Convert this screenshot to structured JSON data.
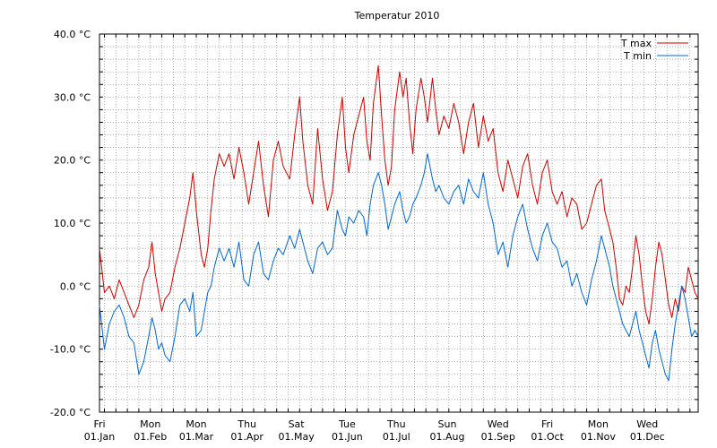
{
  "chart_data": {
    "type": "line",
    "title": "Temperatur 2010",
    "xlabel": "",
    "ylabel": "",
    "ylim": [
      -20,
      40
    ],
    "xlim": [
      0,
      365
    ],
    "grid": true,
    "legend_position": "top-right",
    "yticks": [
      {
        "value": -20,
        "label": "-20.0 °C"
      },
      {
        "value": -10,
        "label": "-10.0 °C"
      },
      {
        "value": 0,
        "label": "0.0 °C"
      },
      {
        "value": 10,
        "label": "10.0 °C"
      },
      {
        "value": 20,
        "label": "20.0 °C"
      },
      {
        "value": 30,
        "label": "30.0 °C"
      },
      {
        "value": 40,
        "label": "40.0 °C"
      }
    ],
    "xticks": [
      {
        "day": 0,
        "weekday": "Fri",
        "date": "01.Jan"
      },
      {
        "day": 31,
        "weekday": "Mon",
        "date": "01.Feb"
      },
      {
        "day": 59,
        "weekday": "Mon",
        "date": "01.Mar"
      },
      {
        "day": 90,
        "weekday": "Thu",
        "date": "01.Apr"
      },
      {
        "day": 120,
        "weekday": "Sat",
        "date": "01.May"
      },
      {
        "day": 151,
        "weekday": "Tue",
        "date": "01.Jun"
      },
      {
        "day": 181,
        "weekday": "Thu",
        "date": "01.Jul"
      },
      {
        "day": 212,
        "weekday": "Sun",
        "date": "01.Aug"
      },
      {
        "day": 243,
        "weekday": "Wed",
        "date": "01.Sep"
      },
      {
        "day": 273,
        "weekday": "Fri",
        "date": "01.Oct"
      },
      {
        "day": 304,
        "weekday": "Mon",
        "date": "01.Nov"
      },
      {
        "day": 334,
        "weekday": "Wed",
        "date": "01.Dec"
      }
    ],
    "series": [
      {
        "name": "T max",
        "color": "#cc0000",
        "points": [
          [
            0,
            6
          ],
          [
            3,
            -1
          ],
          [
            6,
            0
          ],
          [
            9,
            -2
          ],
          [
            12,
            1
          ],
          [
            15,
            -1
          ],
          [
            18,
            -3
          ],
          [
            21,
            -5
          ],
          [
            24,
            -3
          ],
          [
            27,
            1
          ],
          [
            30,
            3
          ],
          [
            32,
            7
          ],
          [
            34,
            2
          ],
          [
            36,
            -1
          ],
          [
            38,
            -4
          ],
          [
            40,
            -2
          ],
          [
            43,
            -1
          ],
          [
            46,
            3
          ],
          [
            49,
            6
          ],
          [
            52,
            10
          ],
          [
            55,
            14
          ],
          [
            57,
            18
          ],
          [
            59,
            12
          ],
          [
            62,
            5
          ],
          [
            64,
            3
          ],
          [
            66,
            6
          ],
          [
            68,
            12
          ],
          [
            70,
            17
          ],
          [
            73,
            21
          ],
          [
            76,
            19
          ],
          [
            79,
            21
          ],
          [
            82,
            17
          ],
          [
            85,
            22
          ],
          [
            88,
            18
          ],
          [
            91,
            13
          ],
          [
            94,
            18
          ],
          [
            97,
            23
          ],
          [
            100,
            16
          ],
          [
            103,
            11
          ],
          [
            106,
            20
          ],
          [
            109,
            23
          ],
          [
            112,
            19
          ],
          [
            116,
            17
          ],
          [
            119,
            24
          ],
          [
            122,
            30
          ],
          [
            124,
            23
          ],
          [
            127,
            16
          ],
          [
            130,
            13
          ],
          [
            133,
            25
          ],
          [
            136,
            17
          ],
          [
            139,
            12
          ],
          [
            142,
            15
          ],
          [
            145,
            24
          ],
          [
            148,
            30
          ],
          [
            150,
            22
          ],
          [
            152,
            18
          ],
          [
            155,
            24
          ],
          [
            158,
            27
          ],
          [
            161,
            30
          ],
          [
            163,
            23
          ],
          [
            165,
            20
          ],
          [
            167,
            29
          ],
          [
            170,
            35
          ],
          [
            172,
            27
          ],
          [
            174,
            20
          ],
          [
            176,
            16
          ],
          [
            178,
            19
          ],
          [
            180,
            28
          ],
          [
            183,
            34
          ],
          [
            185,
            30
          ],
          [
            187,
            33
          ],
          [
            189,
            26
          ],
          [
            191,
            21
          ],
          [
            193,
            28
          ],
          [
            196,
            33
          ],
          [
            198,
            30
          ],
          [
            200,
            26
          ],
          [
            203,
            33
          ],
          [
            205,
            28
          ],
          [
            207,
            24
          ],
          [
            210,
            27
          ],
          [
            213,
            25
          ],
          [
            216,
            29
          ],
          [
            219,
            26
          ],
          [
            222,
            21
          ],
          [
            225,
            26
          ],
          [
            228,
            29
          ],
          [
            231,
            22
          ],
          [
            234,
            27
          ],
          [
            237,
            23
          ],
          [
            240,
            25
          ],
          [
            243,
            18
          ],
          [
            246,
            15
          ],
          [
            249,
            20
          ],
          [
            252,
            17
          ],
          [
            255,
            14
          ],
          [
            258,
            19
          ],
          [
            261,
            21
          ],
          [
            264,
            16
          ],
          [
            267,
            13
          ],
          [
            270,
            18
          ],
          [
            273,
            20
          ],
          [
            276,
            15
          ],
          [
            279,
            13
          ],
          [
            282,
            15
          ],
          [
            285,
            11
          ],
          [
            288,
            14
          ],
          [
            291,
            13
          ],
          [
            294,
            9
          ],
          [
            297,
            10
          ],
          [
            300,
            13
          ],
          [
            303,
            16
          ],
          [
            306,
            17
          ],
          [
            308,
            12
          ],
          [
            311,
            9
          ],
          [
            313,
            7
          ],
          [
            315,
            3
          ],
          [
            317,
            -2
          ],
          [
            319,
            -3
          ],
          [
            321,
            0
          ],
          [
            323,
            -1
          ],
          [
            325,
            3
          ],
          [
            327,
            8
          ],
          [
            329,
            5
          ],
          [
            331,
            0
          ],
          [
            333,
            -4
          ],
          [
            335,
            -6
          ],
          [
            337,
            -2
          ],
          [
            339,
            3
          ],
          [
            341,
            7
          ],
          [
            343,
            5
          ],
          [
            345,
            1
          ],
          [
            347,
            -3
          ],
          [
            349,
            -5
          ],
          [
            351,
            -2
          ],
          [
            353,
            -4
          ],
          [
            355,
            0
          ],
          [
            357,
            -1
          ],
          [
            359,
            3
          ],
          [
            361,
            1
          ],
          [
            363,
            -1
          ],
          [
            365,
            -2
          ]
        ]
      },
      {
        "name": "T min",
        "color": "#0066cc",
        "points": [
          [
            0,
            -3
          ],
          [
            3,
            -10
          ],
          [
            6,
            -6
          ],
          [
            9,
            -4
          ],
          [
            12,
            -3
          ],
          [
            15,
            -5
          ],
          [
            18,
            -8
          ],
          [
            21,
            -9
          ],
          [
            24,
            -14
          ],
          [
            27,
            -12
          ],
          [
            30,
            -8
          ],
          [
            32,
            -5
          ],
          [
            34,
            -7
          ],
          [
            36,
            -10
          ],
          [
            38,
            -9
          ],
          [
            40,
            -11
          ],
          [
            43,
            -12
          ],
          [
            46,
            -8
          ],
          [
            49,
            -3
          ],
          [
            52,
            -2
          ],
          [
            55,
            -4
          ],
          [
            57,
            -1
          ],
          [
            59,
            -8
          ],
          [
            62,
            -7
          ],
          [
            64,
            -4
          ],
          [
            66,
            -1
          ],
          [
            68,
            0
          ],
          [
            70,
            3
          ],
          [
            73,
            6
          ],
          [
            76,
            4
          ],
          [
            79,
            6
          ],
          [
            82,
            3
          ],
          [
            85,
            7
          ],
          [
            88,
            1
          ],
          [
            91,
            0
          ],
          [
            94,
            5
          ],
          [
            97,
            7
          ],
          [
            100,
            2
          ],
          [
            103,
            1
          ],
          [
            106,
            4
          ],
          [
            109,
            6
          ],
          [
            112,
            5
          ],
          [
            116,
            8
          ],
          [
            119,
            6
          ],
          [
            122,
            9
          ],
          [
            124,
            7
          ],
          [
            127,
            4
          ],
          [
            130,
            2
          ],
          [
            133,
            6
          ],
          [
            136,
            7
          ],
          [
            139,
            5
          ],
          [
            142,
            6
          ],
          [
            145,
            12
          ],
          [
            148,
            9
          ],
          [
            150,
            8
          ],
          [
            152,
            11
          ],
          [
            155,
            10
          ],
          [
            158,
            12
          ],
          [
            161,
            11
          ],
          [
            163,
            8
          ],
          [
            165,
            13
          ],
          [
            167,
            16
          ],
          [
            170,
            18
          ],
          [
            172,
            16
          ],
          [
            174,
            13
          ],
          [
            176,
            9
          ],
          [
            178,
            11
          ],
          [
            180,
            13
          ],
          [
            183,
            15
          ],
          [
            185,
            12
          ],
          [
            187,
            10
          ],
          [
            189,
            11
          ],
          [
            191,
            13
          ],
          [
            193,
            14
          ],
          [
            196,
            16
          ],
          [
            198,
            18
          ],
          [
            200,
            21
          ],
          [
            203,
            17
          ],
          [
            205,
            15
          ],
          [
            207,
            16
          ],
          [
            210,
            14
          ],
          [
            213,
            13
          ],
          [
            216,
            15
          ],
          [
            219,
            16
          ],
          [
            222,
            13
          ],
          [
            225,
            17
          ],
          [
            228,
            15
          ],
          [
            231,
            14
          ],
          [
            234,
            18
          ],
          [
            237,
            13
          ],
          [
            240,
            10
          ],
          [
            243,
            5
          ],
          [
            246,
            7
          ],
          [
            249,
            3
          ],
          [
            252,
            8
          ],
          [
            255,
            11
          ],
          [
            258,
            13
          ],
          [
            261,
            9
          ],
          [
            264,
            6
          ],
          [
            267,
            4
          ],
          [
            270,
            8
          ],
          [
            273,
            10
          ],
          [
            276,
            7
          ],
          [
            279,
            6
          ],
          [
            282,
            3
          ],
          [
            285,
            4
          ],
          [
            288,
            0
          ],
          [
            291,
            2
          ],
          [
            294,
            -1
          ],
          [
            297,
            -3
          ],
          [
            300,
            1
          ],
          [
            303,
            4
          ],
          [
            306,
            8
          ],
          [
            308,
            6
          ],
          [
            311,
            3
          ],
          [
            313,
            0
          ],
          [
            315,
            -2
          ],
          [
            317,
            -4
          ],
          [
            319,
            -6
          ],
          [
            321,
            -7
          ],
          [
            323,
            -8
          ],
          [
            325,
            -6
          ],
          [
            327,
            -4
          ],
          [
            329,
            -7
          ],
          [
            331,
            -9
          ],
          [
            333,
            -11
          ],
          [
            335,
            -13
          ],
          [
            337,
            -9
          ],
          [
            339,
            -7
          ],
          [
            341,
            -10
          ],
          [
            343,
            -12
          ],
          [
            345,
            -14
          ],
          [
            347,
            -15
          ],
          [
            349,
            -10
          ],
          [
            351,
            -6
          ],
          [
            353,
            -3
          ],
          [
            355,
            0
          ],
          [
            357,
            -2
          ],
          [
            359,
            -5
          ],
          [
            361,
            -8
          ],
          [
            363,
            -7
          ],
          [
            365,
            -8
          ]
        ]
      }
    ]
  }
}
